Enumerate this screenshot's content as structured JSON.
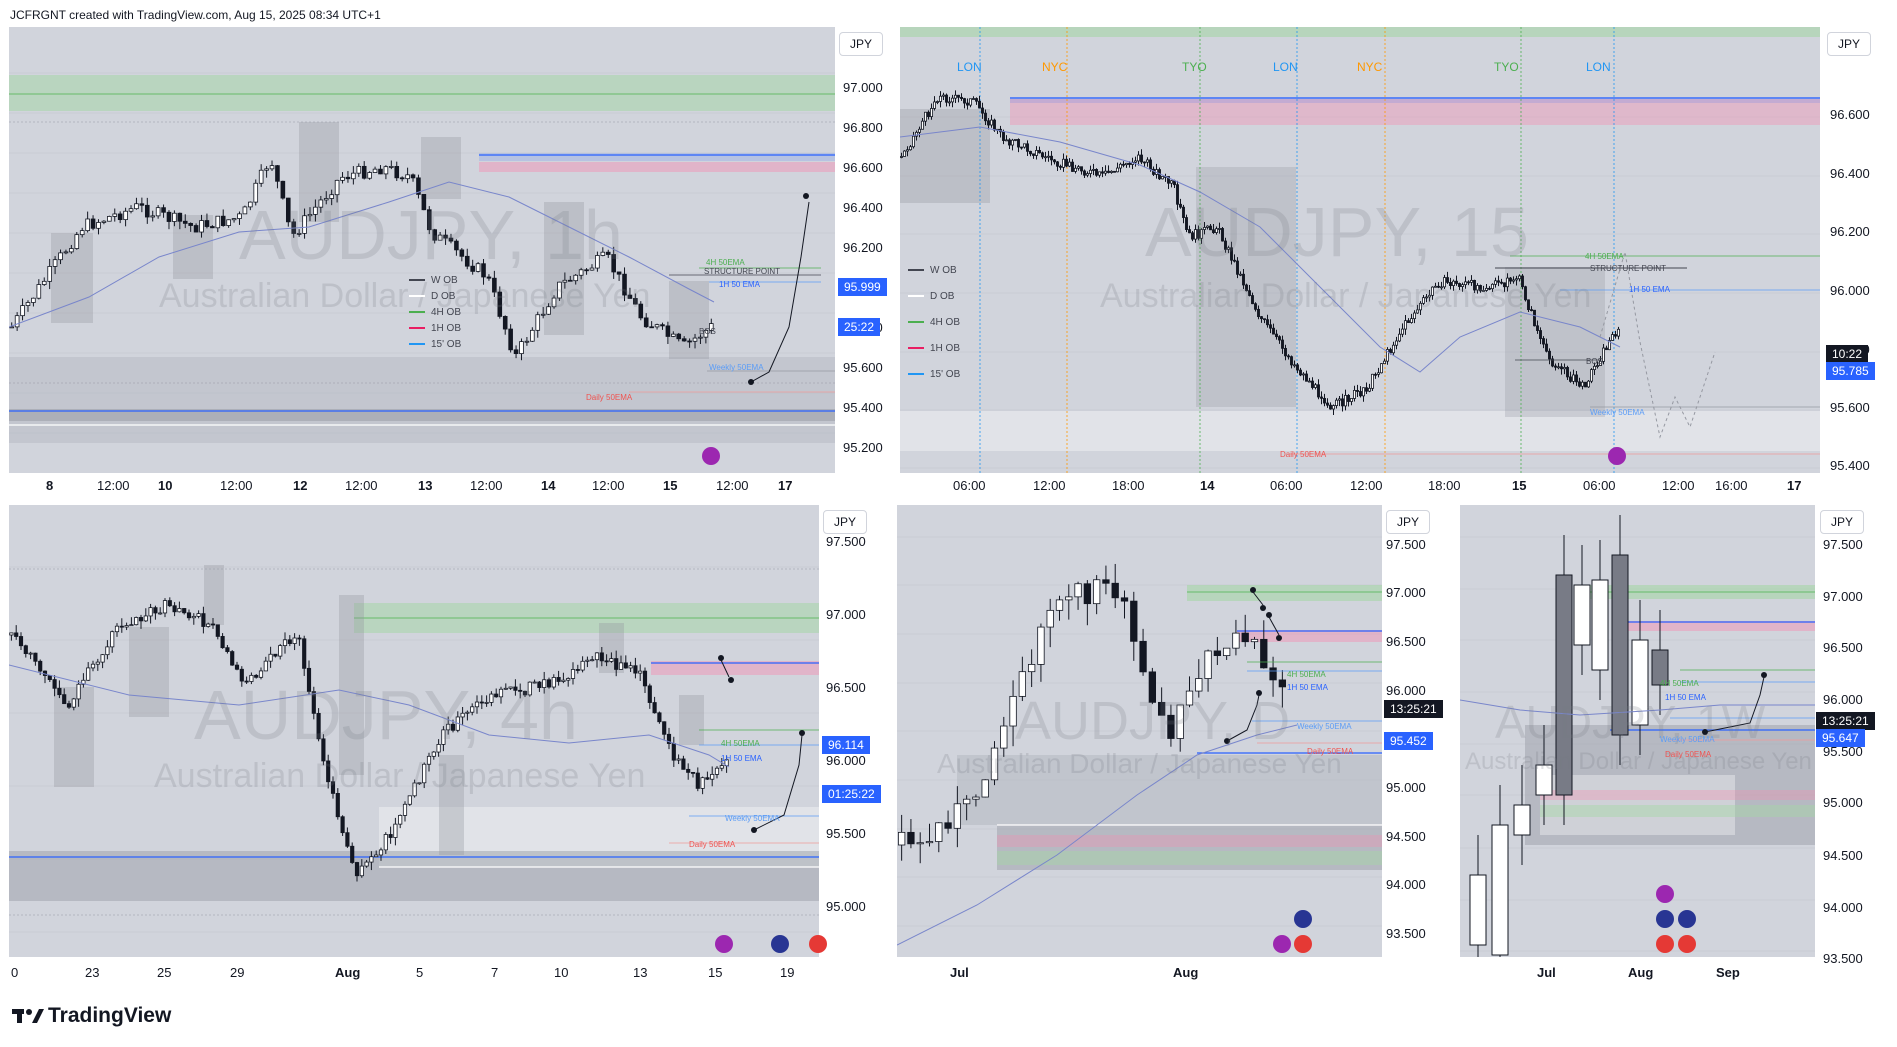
{
  "header": {
    "text": "JCFRGNT created with TradingView.com, Aug 15, 2025 08:34 UTC+1"
  },
  "footer": {
    "brand": "TradingView"
  },
  "colors": {
    "pane_bg": "#d1d4dc",
    "accent_blue": "#2962ff",
    "bull": "#ffffff",
    "bear": "#131722",
    "grid": "#9598a1",
    "green_zone": "#a5d6a7",
    "pink_zone": "#f8bbd0",
    "blue_line": "#5b9cf6"
  },
  "panes": {
    "p1": {
      "currency": "JPY",
      "watermark": {
        "symbol": "AUDJPY, 1h",
        "name": "Australian Dollar / Japanese Yen"
      },
      "y_ticks": [
        "97.000",
        "96.800",
        "96.600",
        "96.400",
        "96.200",
        "96.000",
        "95.800",
        "95.600",
        "95.400",
        "95.200"
      ],
      "x_ticks": [
        "8",
        "12:00",
        "10",
        "12:00",
        "12",
        "12:00",
        "13",
        "12:00",
        "14",
        "12:00",
        "15",
        "12:00",
        "17"
      ],
      "price_badge": "95.999",
      "timer_badge": "25:22",
      "legend": [
        "W OB",
        "D OB",
        "4H OB",
        "1H OB",
        "15' OB"
      ],
      "labels": {
        "structure": "STRUCTURE POINT",
        "ema4h": "4H 50EMA",
        "ema1h": "1H 50 EMA",
        "bos": "BOS",
        "weekly": "Weekly 50EMA",
        "daily": "Daily 50EMA"
      }
    },
    "p2": {
      "currency": "JPY",
      "watermark": {
        "symbol": "AUDJPY, 15",
        "name": "Australian Dollar / Japanese Yen"
      },
      "sessions": [
        "LON",
        "NYC",
        "TYO",
        "LON",
        "NYC",
        "TYO",
        "LON"
      ],
      "y_ticks": [
        "96.600",
        "96.400",
        "96.200",
        "96.000",
        "95.800",
        "95.600",
        "95.400"
      ],
      "x_ticks": [
        "06:00",
        "12:00",
        "18:00",
        "14",
        "06:00",
        "12:00",
        "18:00",
        "15",
        "06:00",
        "12:00",
        "16:00",
        "17"
      ],
      "price_badge": "95.785",
      "timer_badge": "10:22",
      "legend": [
        "W OB",
        "D OB",
        "4H OB",
        "1H OB",
        "15' OB"
      ],
      "labels": {
        "structure": "STRUCTURE POINT",
        "ema4h": "4H 50EMA",
        "ema1h": "1H 50 EMA",
        "bos": "BOS",
        "weekly": "Weekly 50EMA",
        "daily": "Daily 50EMA"
      }
    },
    "p3": {
      "currency": "JPY",
      "watermark": {
        "symbol": "AUDJPY, 4h",
        "name": "Australian Dollar / Japanese Yen"
      },
      "y_ticks": [
        "97.500",
        "97.000",
        "96.500",
        "96.000",
        "95.500",
        "95.000"
      ],
      "x_ticks": [
        "0",
        "23",
        "25",
        "29",
        "Aug",
        "5",
        "7",
        "10",
        "13",
        "15",
        "19"
      ],
      "price_badge": "96.114",
      "timer_badge": "01:25:22",
      "labels": {
        "ema4h": "4H 50EMA",
        "ema1h": "1H 50 EMA",
        "weekly": "Weekly 50EMA",
        "daily": "Daily 50EMA"
      }
    },
    "p4": {
      "currency": "JPY",
      "watermark": {
        "symbol": "AUDJPY, D",
        "name": "Australian Dollar / Japanese Yen"
      },
      "y_ticks": [
        "97.500",
        "97.000",
        "96.500",
        "96.000",
        "95.500",
        "95.000",
        "94.500",
        "94.000",
        "93.500"
      ],
      "x_ticks": [
        "Jul",
        "Aug"
      ],
      "price_badge": "95.452",
      "timer_badge": "13:25:21",
      "labels": {
        "ema4h": "4H 50EMA",
        "ema1h": "1H 50 EMA",
        "weekly": "Weekly 50EMA",
        "daily": "Daily 50EMA"
      }
    },
    "p5": {
      "currency": "JPY",
      "watermark": {
        "symbol": "AUDJPY, 1W",
        "name": "Australian Dollar / Japanese Yen"
      },
      "y_ticks": [
        "97.500",
        "97.000",
        "96.500",
        "96.000",
        "95.500",
        "95.000",
        "94.500",
        "94.000",
        "93.500"
      ],
      "x_ticks": [
        "Jul",
        "Aug",
        "Sep"
      ],
      "price_badge": "95.647",
      "timer_badge": "13:25:21",
      "labels": {
        "ema4h": "4H 50EMA",
        "ema1h": "1H 50 EMA",
        "weekly": "Weekly 50EMA",
        "daily": "Daily 50EMA"
      }
    }
  }
}
